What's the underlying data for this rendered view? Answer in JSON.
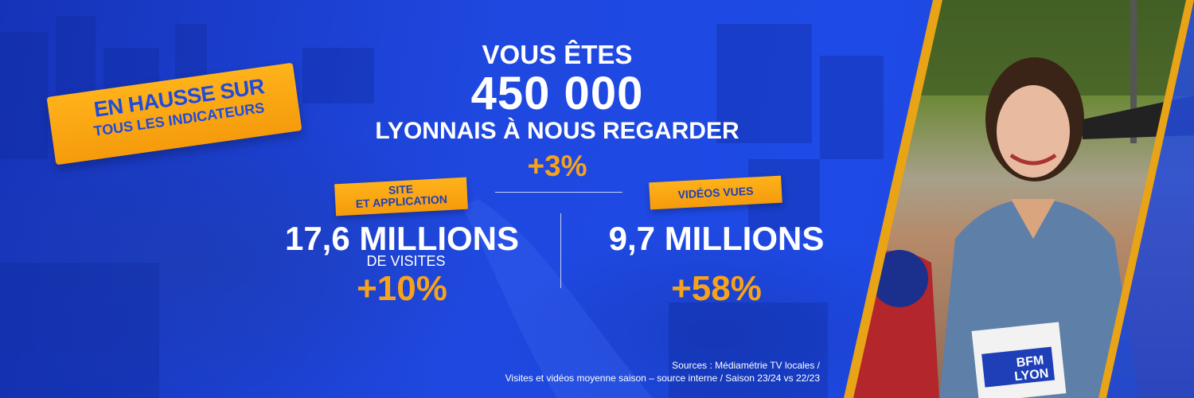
{
  "badge": {
    "line1": "EN HAUSSE SUR",
    "line2": "TOUS LES INDICATEURS"
  },
  "hero": {
    "line1": "VOUS ÊTES",
    "number": "450 000",
    "line2": "LYONNAIS À NOUS REGARDER",
    "growth": "+3%"
  },
  "stats": [
    {
      "label_line1": "SITE",
      "label_line2": "ET APPLICATION",
      "value": "17,6 MILLIONS",
      "unit": "DE VISITES",
      "growth": "+10%"
    },
    {
      "label_line1": "VIDÉOS VUES",
      "value": "9,7 MILLIONS",
      "growth": "+58%"
    }
  ],
  "sources": {
    "line1": "Sources : Médiamétrie TV locales /",
    "line2": "Visites et vidéos moyenne saison – source interne / Saison 23/24 vs 22/23"
  },
  "photo": {
    "logo_line1": "BFM",
    "logo_line2": "LYON"
  },
  "colors": {
    "background": "#1a3fd6",
    "accent": "#f7a21b",
    "text": "#ffffff",
    "badge_text": "#1f4bdc"
  }
}
